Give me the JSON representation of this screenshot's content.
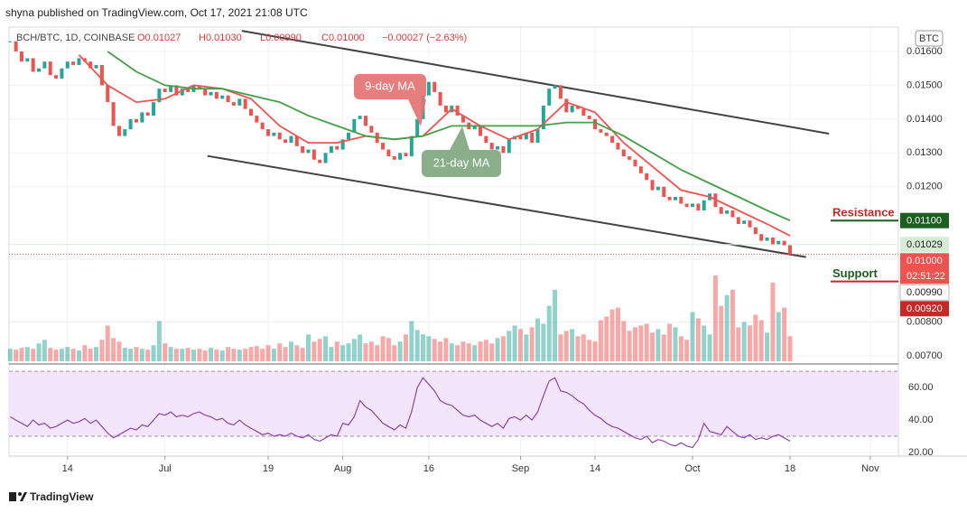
{
  "header": {
    "attribution": "shyna published on TradingView.com, Oct 17, 2021 21:08 UTC",
    "symbol": "BCH/BTC, 1D, COINBASE",
    "open": "O0.01027",
    "high": "H0.01030",
    "low": "L0.00990",
    "close": "C0.01000",
    "change": "−0.00027 (−2.63%)",
    "currency": "BTC"
  },
  "footer": {
    "brand": "TradingView"
  },
  "chart_data": {
    "type": "candlestick",
    "xlim": [
      2.8,
      157.9
    ],
    "xticks": [
      {
        "value": 13,
        "label": "14"
      },
      {
        "value": 30,
        "label": "Jul"
      },
      {
        "value": 48,
        "label": "19"
      },
      {
        "value": 61,
        "label": "Aug"
      },
      {
        "value": 76,
        "label": "16"
      },
      {
        "value": 92,
        "label": "Sep"
      },
      {
        "value": 105,
        "label": "14"
      },
      {
        "value": 122,
        "label": "Oct"
      },
      {
        "value": 139,
        "label": "18"
      },
      {
        "value": 153,
        "label": "Nov"
      }
    ],
    "ylim": [
      0.00684,
      0.01672
    ],
    "yticks": [
      {
        "value": 0.016,
        "label": "0.01600"
      },
      {
        "value": 0.015,
        "label": "0.01500"
      },
      {
        "value": 0.014,
        "label": "0.01400"
      },
      {
        "value": 0.013,
        "label": "0.01300"
      },
      {
        "value": 0.012,
        "label": "0.01200"
      },
      {
        "value": 0.008,
        "label": "0.00800"
      },
      {
        "value": 0.007,
        "label": "0.00700"
      }
    ],
    "up_color": "#26a69a",
    "down_color": "#ef5350",
    "x": [
      3,
      4,
      5,
      6,
      7,
      8,
      9,
      10,
      11,
      12,
      13,
      14,
      15,
      16,
      17,
      18,
      19,
      20,
      21,
      22,
      23,
      24,
      25,
      26,
      27,
      28,
      29,
      30,
      31,
      32,
      33,
      34,
      35,
      36,
      37,
      38,
      39,
      40,
      41,
      42,
      43,
      44,
      45,
      46,
      47,
      48,
      49,
      50,
      51,
      52,
      53,
      54,
      55,
      56,
      57,
      58,
      59,
      60,
      61,
      62,
      63,
      64,
      65,
      66,
      67,
      68,
      69,
      70,
      71,
      72,
      73,
      74,
      75,
      76,
      77,
      78,
      79,
      80,
      81,
      82,
      83,
      84,
      85,
      86,
      87,
      88,
      89,
      90,
      91,
      92,
      93,
      94,
      95,
      96,
      97,
      98,
      99,
      100,
      101,
      102,
      103,
      104,
      105,
      106,
      107,
      108,
      109,
      110,
      111,
      112,
      113,
      114,
      115,
      116,
      117,
      118,
      119,
      120,
      121,
      122,
      123,
      124,
      125,
      126,
      127,
      128,
      129,
      130,
      131,
      132,
      133,
      134,
      135,
      136,
      137,
      138,
      139
    ],
    "close": [
      0.0163,
      0.016,
      0.0157,
      0.0158,
      0.0154,
      0.0155,
      0.0157,
      0.0153,
      0.0152,
      0.0155,
      0.0157,
      0.0156,
      0.0158,
      0.0157,
      0.0155,
      0.0156,
      0.015,
      0.0145,
      0.0138,
      0.0135,
      0.0137,
      0.014,
      0.0139,
      0.0142,
      0.0141,
      0.0145,
      0.0149,
      0.0148,
      0.015,
      0.0147,
      0.0149,
      0.0148,
      0.015,
      0.0149,
      0.0147,
      0.0148,
      0.0146,
      0.0147,
      0.0145,
      0.0144,
      0.0146,
      0.0143,
      0.0141,
      0.0139,
      0.0137,
      0.0135,
      0.0136,
      0.0134,
      0.0133,
      0.0135,
      0.0132,
      0.013,
      0.0131,
      0.0128,
      0.0127,
      0.013,
      0.0132,
      0.0131,
      0.0134,
      0.0136,
      0.014,
      0.0141,
      0.0138,
      0.0136,
      0.0133,
      0.0131,
      0.0129,
      0.0128,
      0.013,
      0.0129,
      0.0135,
      0.014,
      0.0147,
      0.0151,
      0.0148,
      0.0144,
      0.0142,
      0.0144,
      0.0141,
      0.0139,
      0.0137,
      0.0138,
      0.0135,
      0.0133,
      0.0131,
      0.0132,
      0.013,
      0.0134,
      0.0135,
      0.0134,
      0.0136,
      0.0133,
      0.0137,
      0.0144,
      0.0149,
      0.015,
      0.0146,
      0.0142,
      0.0144,
      0.0143,
      0.0141,
      0.014,
      0.0137,
      0.0136,
      0.0135,
      0.0133,
      0.0131,
      0.0129,
      0.0128,
      0.0126,
      0.0124,
      0.0122,
      0.0119,
      0.012,
      0.0117,
      0.0116,
      0.0117,
      0.0115,
      0.0114,
      0.0115,
      0.0113,
      0.0116,
      0.0118,
      0.0114,
      0.0112,
      0.0113,
      0.0111,
      0.0109,
      0.011,
      0.0108,
      0.0106,
      0.0104,
      0.0105,
      0.0103,
      0.0104,
      0.01027,
      0.01
    ],
    "volume": [
      14,
      13,
      15,
      16,
      14,
      20,
      24,
      15,
      13,
      14,
      16,
      14,
      12,
      18,
      14,
      16,
      24,
      40,
      26,
      22,
      15,
      14,
      16,
      14,
      13,
      18,
      45,
      20,
      16,
      14,
      14,
      15,
      13,
      14,
      12,
      15,
      13,
      12,
      16,
      14,
      13,
      14,
      16,
      17,
      14,
      18,
      14,
      20,
      16,
      22,
      18,
      15,
      30,
      22,
      25,
      28,
      16,
      22,
      18,
      20,
      25,
      30,
      20,
      22,
      18,
      28,
      26,
      18,
      22,
      30,
      45,
      35,
      30,
      28,
      25,
      22,
      26,
      20,
      18,
      22,
      20,
      18,
      22,
      24,
      20,
      26,
      28,
      34,
      40,
      36,
      30,
      38,
      48,
      42,
      62,
      80,
      30,
      34,
      36,
      28,
      30,
      24,
      22,
      46,
      50,
      58,
      60,
      45,
      34,
      38,
      40,
      42,
      32,
      36,
      30,
      42,
      38,
      28,
      24,
      55,
      48,
      40,
      30,
      96,
      62,
      74,
      80,
      38,
      44,
      40,
      52,
      46,
      32,
      88,
      55,
      60,
      28
    ],
    "ma": [
      {
        "name": "9-day MA",
        "color": "#f05350",
        "x": [
          15,
          20,
          25,
          30,
          35,
          40,
          45,
          50,
          55,
          60,
          65,
          70,
          75,
          80,
          85,
          90,
          95,
          100,
          105,
          110,
          115,
          120,
          125,
          130,
          135,
          139
        ],
        "values": [
          0.0159,
          0.015,
          0.0145,
          0.0146,
          0.015,
          0.0149,
          0.0146,
          0.0138,
          0.0133,
          0.0133,
          0.0135,
          0.0134,
          0.0135,
          0.0143,
          0.0138,
          0.0134,
          0.0137,
          0.0145,
          0.0142,
          0.0133,
          0.0126,
          0.0119,
          0.0117,
          0.0113,
          0.0109,
          0.01055
        ]
      },
      {
        "name": "21-day MA",
        "color": "#43a047",
        "x": [
          20,
          25,
          30,
          35,
          40,
          45,
          50,
          55,
          60,
          65,
          70,
          75,
          80,
          85,
          90,
          95,
          100,
          105,
          110,
          115,
          120,
          125,
          130,
          135,
          139
        ],
        "values": [
          0.016,
          0.0154,
          0.015,
          0.0149,
          0.0149,
          0.0147,
          0.0145,
          0.0141,
          0.0138,
          0.0135,
          0.0134,
          0.0135,
          0.0138,
          0.0138,
          0.0138,
          0.0138,
          0.0139,
          0.0139,
          0.0135,
          0.013,
          0.0125,
          0.0121,
          0.0117,
          0.0113,
          0.011
        ]
      }
    ],
    "channel": [
      {
        "color": "#444",
        "x": [
          43.4,
          145.8
        ],
        "values": [
          0.01661,
          0.01357
        ]
      },
      {
        "color": "#444",
        "x": [
          37.4,
          141.8
        ],
        "values": [
          0.01291,
          0.00992
        ]
      }
    ],
    "levels": [
      {
        "name": "Resistance",
        "value": 0.011,
        "text_color": "#c62828",
        "line_color": "#1b5e20"
      },
      {
        "name": "Support",
        "value": 0.0092,
        "text_color": "#1b5e20",
        "line_color": "#c62828"
      }
    ],
    "price_labels": [
      {
        "value": 0.011,
        "label": "0.01100",
        "bg": "#1b5e20",
        "fg": "#ffffff"
      },
      {
        "value": 0.01029,
        "label": "0.01029",
        "bg": "#d6ecd6",
        "fg": "#222222",
        "line": "solid"
      },
      {
        "value": 0.01,
        "label": "0.01000",
        "countdown": "02:51:22",
        "bg": "#ef5350",
        "fg": "#ffffff",
        "line": "dotted"
      },
      {
        "value": 0.0099,
        "label": "0.00990",
        "bg": "#ffffff",
        "fg": "#222222"
      },
      {
        "value": 0.0092,
        "label": "0.00920",
        "bg": "#c62828",
        "fg": "#ffffff"
      }
    ],
    "rsi": {
      "color": "#8e44ad",
      "ylim": [
        17.8,
        70.6
      ],
      "band": [
        30,
        70
      ],
      "yticks": [
        {
          "value": 60,
          "label": "60.00"
        },
        {
          "value": 40,
          "label": "40.00"
        },
        {
          "value": 20,
          "label": "20.00"
        }
      ],
      "values": [
        42,
        40,
        38,
        36,
        40,
        37,
        38,
        35,
        36,
        38,
        40,
        38,
        39,
        41,
        38,
        40,
        36,
        32,
        29,
        31,
        33,
        35,
        34,
        37,
        36,
        40,
        44,
        43,
        45,
        42,
        43,
        42,
        44,
        45,
        43,
        42,
        40,
        41,
        38,
        37,
        40,
        37,
        35,
        33,
        31,
        32,
        30,
        31,
        30,
        32,
        30,
        29,
        31,
        28,
        27,
        29,
        31,
        30,
        38,
        37,
        42,
        52,
        48,
        46,
        42,
        38,
        36,
        34,
        37,
        35,
        45,
        60,
        66,
        62,
        58,
        52,
        50,
        49,
        46,
        43,
        42,
        43,
        40,
        38,
        36,
        38,
        35,
        41,
        42,
        40,
        43,
        40,
        45,
        55,
        64,
        66,
        58,
        57,
        55,
        52,
        50,
        46,
        43,
        41,
        38,
        36,
        35,
        33,
        31,
        29,
        28,
        30,
        26,
        28,
        27,
        25,
        24,
        26,
        24,
        23,
        28,
        38,
        33,
        32,
        31,
        36,
        33,
        30,
        29,
        31,
        28,
        29,
        28,
        30,
        31,
        29,
        27
      ]
    }
  }
}
